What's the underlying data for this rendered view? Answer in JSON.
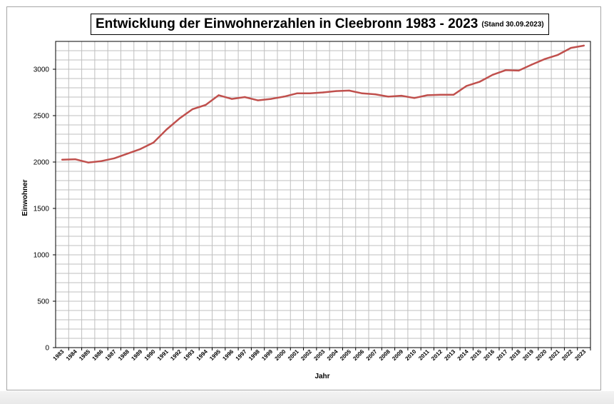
{
  "chart_data": {
    "type": "line",
    "title": "Entwicklung der Einwohnerzahlen in Cleebronn 1983 - 2023",
    "subtitle": "(Stand 30.09.2023)",
    "xlabel": "Jahr",
    "ylabel": "Einwohner",
    "ylim": [
      0,
      3300
    ],
    "yticks": [
      0,
      500,
      1000,
      1500,
      2000,
      2500,
      3000
    ],
    "grid": true,
    "line_color": "#c0504d",
    "x": [
      "1983",
      "1984",
      "1985",
      "1986",
      "1987",
      "1988",
      "1989",
      "1990",
      "1991",
      "1992",
      "1993",
      "1994",
      "1995",
      "1996",
      "1997",
      "1998",
      "1999",
      "2000",
      "2001",
      "2002",
      "2003",
      "2004",
      "2005",
      "2006",
      "2007",
      "2008",
      "2009",
      "2010",
      "2011",
      "2012",
      "2013",
      "2014",
      "2015",
      "2016",
      "2017",
      "2018",
      "2019",
      "2020",
      "2021",
      "2022",
      "2023"
    ],
    "values": [
      2025,
      2030,
      1995,
      2010,
      2040,
      2090,
      2140,
      2210,
      2350,
      2470,
      2570,
      2615,
      2720,
      2680,
      2700,
      2665,
      2680,
      2705,
      2740,
      2740,
      2750,
      2765,
      2770,
      2740,
      2730,
      2705,
      2715,
      2690,
      2720,
      2725,
      2725,
      2820,
      2865,
      2940,
      2990,
      2985,
      3050,
      3110,
      3155,
      3230,
      3255
    ]
  }
}
